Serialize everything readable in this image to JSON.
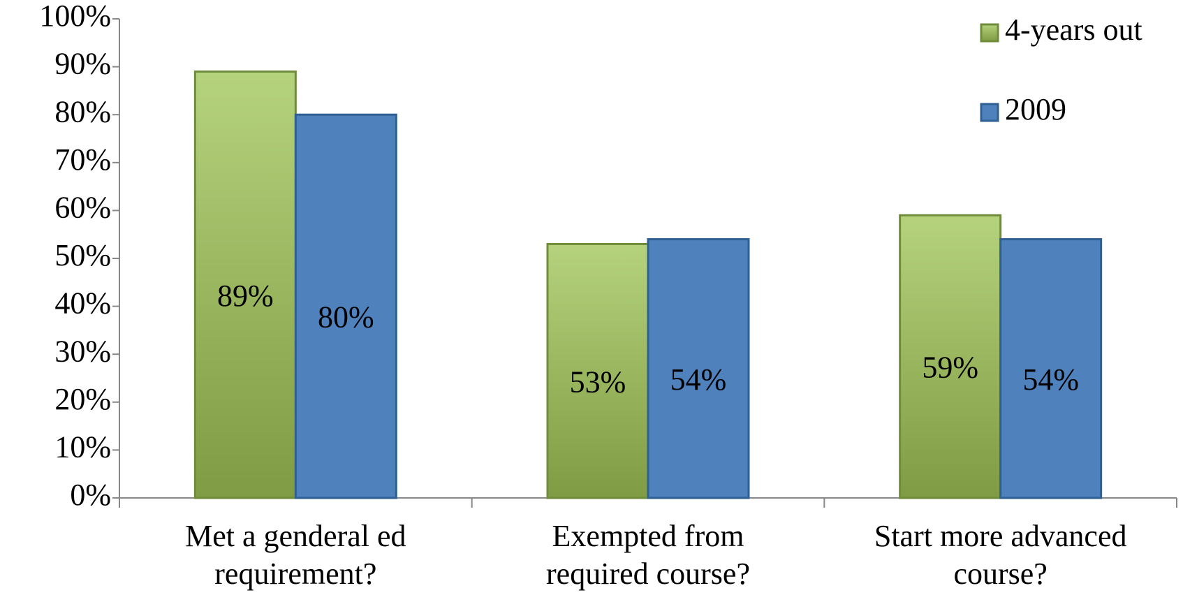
{
  "chart_data": {
    "type": "bar",
    "categories": [
      [
        "Met a genderal ed",
        "requirement?"
      ],
      [
        "Exempted from",
        "required course?"
      ],
      [
        "Start more advanced",
        "course?"
      ]
    ],
    "series": [
      {
        "name": "4-years out",
        "color": "#9bbb59",
        "values": [
          89,
          53,
          59
        ],
        "value_labels": [
          "89%",
          "53%",
          "59%"
        ]
      },
      {
        "name": "2009",
        "color": "#4f81bd",
        "values": [
          80,
          54,
          54
        ],
        "value_labels": [
          "80%",
          "54%",
          "54%"
        ]
      }
    ],
    "ylim": [
      0,
      100
    ],
    "yticks": [
      {
        "value": 0,
        "label": "0%"
      },
      {
        "value": 10,
        "label": "10%"
      },
      {
        "value": 20,
        "label": "20%"
      },
      {
        "value": 30,
        "label": "30%"
      },
      {
        "value": 40,
        "label": "40%"
      },
      {
        "value": 50,
        "label": "50%"
      },
      {
        "value": 60,
        "label": "60%"
      },
      {
        "value": 70,
        "label": "70%"
      },
      {
        "value": 80,
        "label": "80%"
      },
      {
        "value": 90,
        "label": "90%"
      },
      {
        "value": 100,
        "label": "100%"
      }
    ],
    "legend": "top-right"
  }
}
